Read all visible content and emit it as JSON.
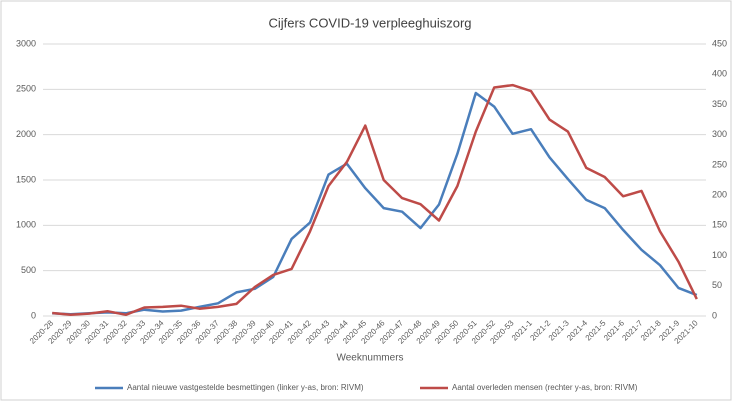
{
  "chart_data": {
    "type": "line",
    "title": "Cijfers COVID-19 verpleeghuiszorg",
    "x_label": "Weeknummers",
    "categories": [
      "2020-28",
      "2020-29",
      "2020-30",
      "2020-31",
      "2020-32",
      "2020-33",
      "2020-34",
      "2020-35",
      "2020-36",
      "2020-37",
      "2020-38",
      "2020-39",
      "2020-40",
      "2020-41",
      "2020-42",
      "2020-43",
      "2020-44",
      "2020-45",
      "2020-46",
      "2020-47",
      "2020-48",
      "2020-49",
      "2020-50",
      "2020-51",
      "2020-52",
      "2020-53",
      "2021-1",
      "2021-2",
      "2021-3",
      "2021-4",
      "2021-5",
      "2021-6",
      "2021-7",
      "2021-8",
      "2021-9",
      "2021-10"
    ],
    "series": [
      {
        "name": "Aantal nieuwe vastgestelde besmettingen  (linker y-as, bron: RIVM)",
        "color": "#4a7ebb",
        "axis": "y",
        "values": [
          30,
          20,
          30,
          40,
          30,
          70,
          50,
          60,
          100,
          140,
          260,
          300,
          430,
          850,
          1030,
          1560,
          1680,
          1410,
          1190,
          1150,
          970,
          1230,
          1790,
          2460,
          2310,
          2010,
          2060,
          1750,
          1510,
          1280,
          1190,
          950,
          730,
          560,
          310,
          230
        ]
      },
      {
        "name": "Aantal overleden mensen  (rechter y-as, bron: RIVM)",
        "color": "#be4b48",
        "axis": "y2",
        "values": [
          5,
          2,
          4,
          8,
          2,
          14,
          15,
          17,
          12,
          15,
          20,
          48,
          68,
          78,
          140,
          215,
          255,
          315,
          225,
          195,
          185,
          158,
          215,
          305,
          378,
          382,
          372,
          325,
          305,
          245,
          230,
          198,
          207,
          140,
          90,
          28
        ]
      }
    ],
    "ylim": [
      0,
      3000
    ],
    "yticks": [
      0,
      500,
      1000,
      1500,
      2000,
      2500,
      3000
    ],
    "y2lim": [
      0,
      450
    ],
    "y2ticks": [
      0,
      50,
      100,
      150,
      200,
      250,
      300,
      350,
      400,
      450
    ],
    "grid": true,
    "legend": "bottom"
  }
}
